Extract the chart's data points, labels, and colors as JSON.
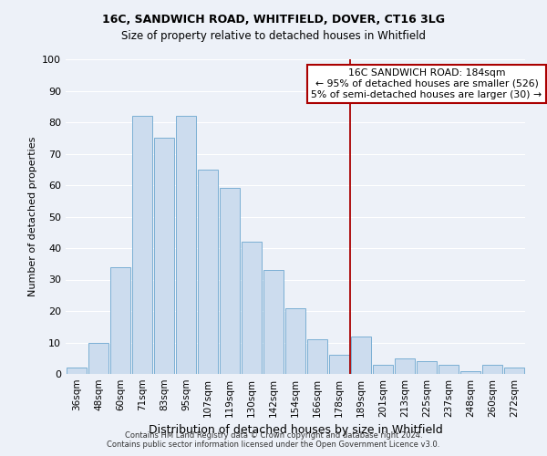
{
  "title1": "16C, SANDWICH ROAD, WHITFIELD, DOVER, CT16 3LG",
  "title2": "Size of property relative to detached houses in Whitfield",
  "xlabel": "Distribution of detached houses by size in Whitfield",
  "ylabel": "Number of detached properties",
  "categories": [
    "36sqm",
    "48sqm",
    "60sqm",
    "71sqm",
    "83sqm",
    "95sqm",
    "107sqm",
    "119sqm",
    "130sqm",
    "142sqm",
    "154sqm",
    "166sqm",
    "178sqm",
    "189sqm",
    "201sqm",
    "213sqm",
    "225sqm",
    "237sqm",
    "248sqm",
    "260sqm",
    "272sqm"
  ],
  "values": [
    2,
    10,
    34,
    82,
    75,
    82,
    65,
    59,
    42,
    33,
    21,
    11,
    6,
    12,
    3,
    5,
    4,
    3,
    1,
    3,
    2
  ],
  "bar_color": "#ccdcee",
  "bar_edge_color": "#7aafd4",
  "vline_color": "#aa0000",
  "annotation_text": "16C SANDWICH ROAD: 184sqm\n← 95% of detached houses are smaller (526)\n5% of semi-detached houses are larger (30) →",
  "annotation_box_color": "#aa0000",
  "background_color": "#edf1f8",
  "grid_color": "#ffffff",
  "footer1": "Contains HM Land Registry data © Crown copyright and database right 2024.",
  "footer2": "Contains public sector information licensed under the Open Government Licence v3.0.",
  "ylim": [
    0,
    100
  ],
  "yticks": [
    0,
    10,
    20,
    30,
    40,
    50,
    60,
    70,
    80,
    90,
    100
  ]
}
